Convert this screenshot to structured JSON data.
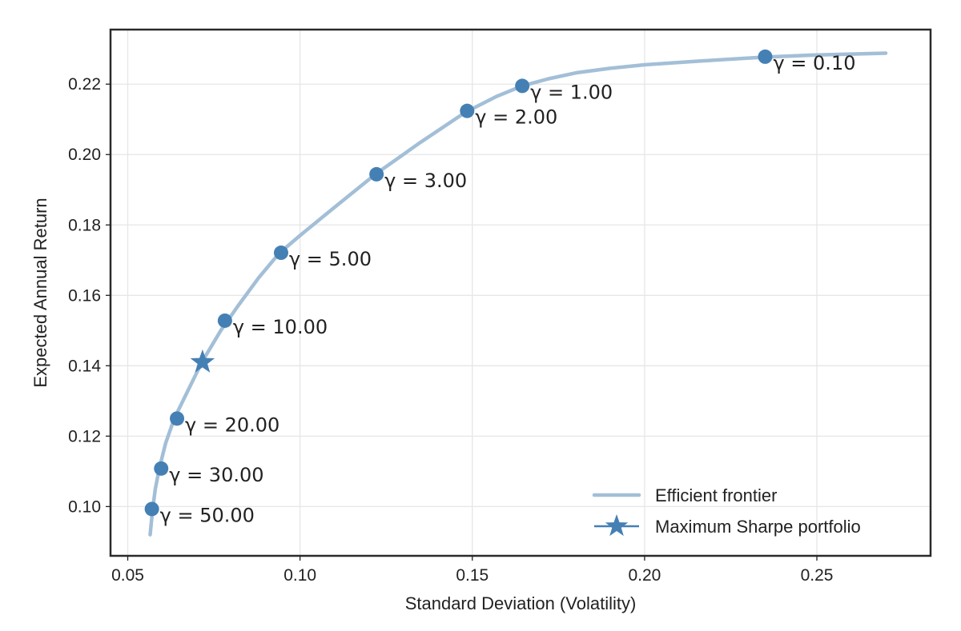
{
  "chart_data": {
    "type": "line",
    "title": "",
    "xlabel": "Standard Deviation (Volatility)",
    "ylabel": "Expected Annual Return",
    "xlim": [
      0.045,
      0.283
    ],
    "ylim": [
      0.086,
      0.2355
    ],
    "x_ticks": [
      0.05,
      0.1,
      0.15,
      0.2,
      0.25
    ],
    "x_tick_labels": [
      "0.05",
      "0.10",
      "0.15",
      "0.20",
      "0.25"
    ],
    "y_ticks": [
      0.1,
      0.12,
      0.14,
      0.16,
      0.18,
      0.2,
      0.22
    ],
    "y_tick_labels": [
      "0.10",
      "0.12",
      "0.14",
      "0.16",
      "0.18",
      "0.20",
      "0.22"
    ],
    "grid": true,
    "legend_position": "bottom-right",
    "colors": {
      "frontier": "#a3bfd7",
      "points": "#4580b5",
      "frame": "#2a2a2a"
    },
    "frontier": {
      "name": "Efficient frontier",
      "x": [
        0.0565,
        0.0572,
        0.058,
        0.0592,
        0.061,
        0.0635,
        0.068,
        0.0715,
        0.077,
        0.082,
        0.088,
        0.094,
        0.1,
        0.11,
        0.122,
        0.135,
        0.148,
        0.157,
        0.1645,
        0.172,
        0.18,
        0.19,
        0.2,
        0.215,
        0.235,
        0.25,
        0.27
      ],
      "y": [
        0.092,
        0.099,
        0.105,
        0.111,
        0.118,
        0.125,
        0.134,
        0.141,
        0.15,
        0.157,
        0.165,
        0.172,
        0.177,
        0.185,
        0.1945,
        0.2035,
        0.212,
        0.2165,
        0.2195,
        0.2215,
        0.2232,
        0.2245,
        0.2255,
        0.2265,
        0.2277,
        0.2283,
        0.2288
      ]
    },
    "gamma_points": [
      {
        "label": "γ = 0.10",
        "x": 0.235,
        "y": 0.2278
      },
      {
        "label": "γ = 1.00",
        "x": 0.1645,
        "y": 0.2195
      },
      {
        "label": "γ = 2.00",
        "x": 0.1485,
        "y": 0.2124
      },
      {
        "label": "γ = 3.00",
        "x": 0.1222,
        "y": 0.1944
      },
      {
        "label": "γ = 5.00",
        "x": 0.0945,
        "y": 0.1721
      },
      {
        "label": "γ = 10.00",
        "x": 0.0782,
        "y": 0.1528
      },
      {
        "label": "γ = 20.00",
        "x": 0.0643,
        "y": 0.125
      },
      {
        "label": "γ = 30.00",
        "x": 0.0597,
        "y": 0.1108
      },
      {
        "label": "γ = 50.00",
        "x": 0.057,
        "y": 0.0993
      }
    ],
    "max_sharpe": {
      "name": "Maximum Sharpe portfolio",
      "x": 0.0717,
      "y": 0.141
    }
  }
}
